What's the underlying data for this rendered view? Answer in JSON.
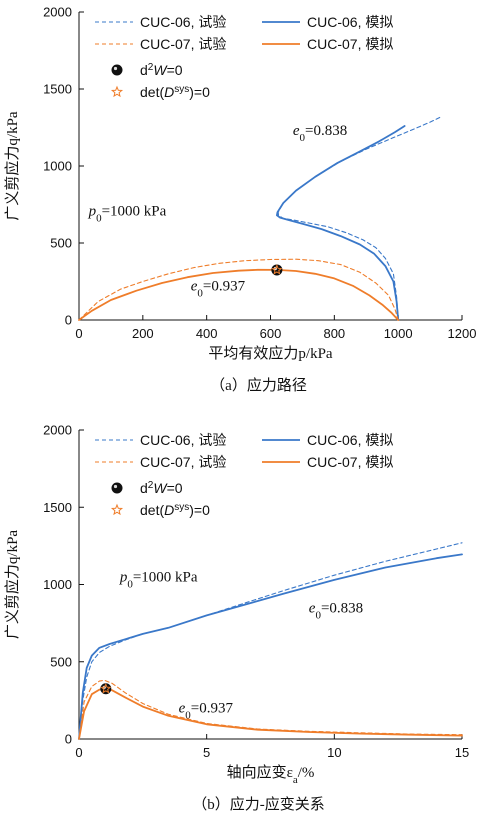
{
  "colors": {
    "cuc06": "#3a78c9",
    "cuc07": "#ef7d2a",
    "axis": "#111111"
  },
  "chart_data": [
    {
      "type": "line",
      "caption": "（a）应力路径",
      "xlabel": "平均有效应力p/kPa",
      "ylabel": "广义剪应力q/kPa",
      "xlim": [
        0,
        1200
      ],
      "ylim": [
        0,
        2000
      ],
      "xticks": [
        0,
        200,
        400,
        600,
        800,
        1000,
        1200
      ],
      "yticks": [
        0,
        500,
        1000,
        1500,
        2000
      ],
      "legend_position": "top-left",
      "grid": false,
      "annotations": [
        {
          "text": "e0=0.838",
          "main": "e",
          "sub": "0",
          "rest": "=0.838",
          "x": 670,
          "y": 1200
        },
        {
          "text": "p0=1000 kPa",
          "main": "p",
          "sub": "0",
          "rest": "=1000 kPa",
          "x": 30,
          "y": 680
        },
        {
          "text": "e0=0.937",
          "main": "e",
          "sub": "0",
          "rest": "=0.937",
          "x": 350,
          "y": 190
        }
      ],
      "markers": [
        {
          "type": "d2W",
          "x": 620,
          "y": 325
        },
        {
          "type": "det",
          "x": 620,
          "y": 325
        }
      ],
      "series": [
        {
          "name": "CUC-06, 试验",
          "key": "cuc06",
          "style": "dashed",
          "x": [
            1000,
            995,
            985,
            960,
            930,
            890,
            840,
            780,
            720,
            670,
            640,
            625,
            624,
            640,
            680,
            740,
            820,
            900,
            980,
            1050,
            1100,
            1130
          ],
          "y": [
            0,
            150,
            300,
            400,
            470,
            520,
            565,
            605,
            630,
            650,
            660,
            680,
            700,
            760,
            840,
            930,
            1030,
            1110,
            1180,
            1240,
            1285,
            1315
          ]
        },
        {
          "name": "CUC-06, 模拟",
          "key": "cuc06",
          "style": "solid",
          "x": [
            1000,
            995,
            985,
            960,
            925,
            880,
            820,
            760,
            700,
            655,
            630,
            620,
            622,
            640,
            680,
            740,
            810,
            880,
            940,
            990,
            1020
          ],
          "y": [
            0,
            120,
            250,
            350,
            430,
            490,
            545,
            590,
            625,
            650,
            665,
            680,
            700,
            760,
            840,
            930,
            1020,
            1095,
            1160,
            1220,
            1260
          ]
        },
        {
          "name": "CUC-07, 试验",
          "key": "cuc07",
          "style": "dashed",
          "x": [
            0,
            60,
            130,
            200,
            280,
            360,
            440,
            520,
            600,
            680,
            750,
            820,
            880,
            930,
            970,
            990,
            1000
          ],
          "y": [
            0,
            120,
            200,
            250,
            300,
            340,
            368,
            385,
            393,
            395,
            385,
            360,
            310,
            240,
            160,
            70,
            0
          ]
        },
        {
          "name": "CUC-07, 模拟",
          "key": "cuc07",
          "style": "solid",
          "x": [
            0,
            40,
            100,
            180,
            260,
            340,
            420,
            500,
            560,
            620,
            680,
            740,
            800,
            860,
            910,
            950,
            980,
            1000
          ],
          "y": [
            0,
            60,
            130,
            190,
            240,
            278,
            305,
            320,
            326,
            325,
            318,
            300,
            270,
            220,
            160,
            100,
            45,
            0
          ]
        }
      ]
    },
    {
      "type": "line",
      "caption": "（b）应力-应变关系",
      "xlabel": "轴向应变εa/%",
      "xlabel_main": "轴向应变ε",
      "xlabel_sub": "a",
      "xlabel_tail": "/%",
      "ylabel": "广义剪应力q/kPa",
      "xlim": [
        0,
        15
      ],
      "ylim": [
        0,
        2000
      ],
      "xticks": [
        0,
        5,
        10,
        15
      ],
      "yticks": [
        0,
        500,
        1000,
        1500,
        2000
      ],
      "legend_position": "top-left",
      "grid": false,
      "annotations": [
        {
          "text": "p0=1000 kPa",
          "main": "p",
          "sub": "0",
          "rest": "=1000 kPa",
          "x": 1.6,
          "y": 1020
        },
        {
          "text": "e0=0.838",
          "main": "e",
          "sub": "0",
          "rest": "=0.838",
          "x": 9.0,
          "y": 820
        },
        {
          "text": "e0=0.937",
          "main": "e",
          "sub": "0",
          "rest": "=0.937",
          "x": 3.9,
          "y": 170
        }
      ],
      "markers": [
        {
          "type": "d2W",
          "x": 1.05,
          "y": 325
        },
        {
          "type": "det",
          "x": 1.05,
          "y": 325
        }
      ],
      "series": [
        {
          "name": "CUC-06, 试验",
          "key": "cuc06",
          "style": "dashed",
          "x": [
            0,
            0.15,
            0.3,
            0.5,
            0.8,
            1.2,
            1.8,
            2.5,
            3.5,
            5,
            6.5,
            8,
            10,
            12,
            14,
            15
          ],
          "y": [
            0,
            250,
            400,
            500,
            560,
            600,
            640,
            680,
            720,
            800,
            880,
            960,
            1060,
            1150,
            1230,
            1270
          ]
        },
        {
          "name": "CUC-06, 模拟",
          "key": "cuc06",
          "style": "solid",
          "x": [
            0,
            0.15,
            0.3,
            0.5,
            0.8,
            1.2,
            1.8,
            2.5,
            3.5,
            5,
            6.5,
            8,
            10,
            12,
            14,
            15
          ],
          "y": [
            0,
            300,
            460,
            540,
            590,
            615,
            645,
            680,
            720,
            800,
            870,
            940,
            1030,
            1110,
            1170,
            1195
          ]
        },
        {
          "name": "CUC-07, 试验",
          "key": "cuc07",
          "style": "dashed",
          "x": [
            0,
            0.2,
            0.5,
            0.8,
            1.0,
            1.3,
            1.8,
            2.5,
            3.5,
            5,
            7,
            9,
            11,
            13,
            15
          ],
          "y": [
            0,
            240,
            340,
            375,
            380,
            360,
            300,
            230,
            160,
            100,
            65,
            50,
            40,
            32,
            28
          ]
        },
        {
          "name": "CUC-07, 模拟",
          "key": "cuc07",
          "style": "solid",
          "x": [
            0,
            0.2,
            0.5,
            0.8,
            1.05,
            1.3,
            1.8,
            2.5,
            3.5,
            5,
            7,
            9,
            11,
            13,
            15
          ],
          "y": [
            0,
            180,
            290,
            320,
            325,
            315,
            270,
            210,
            150,
            95,
            60,
            45,
            35,
            28,
            22
          ]
        }
      ]
    }
  ]
}
